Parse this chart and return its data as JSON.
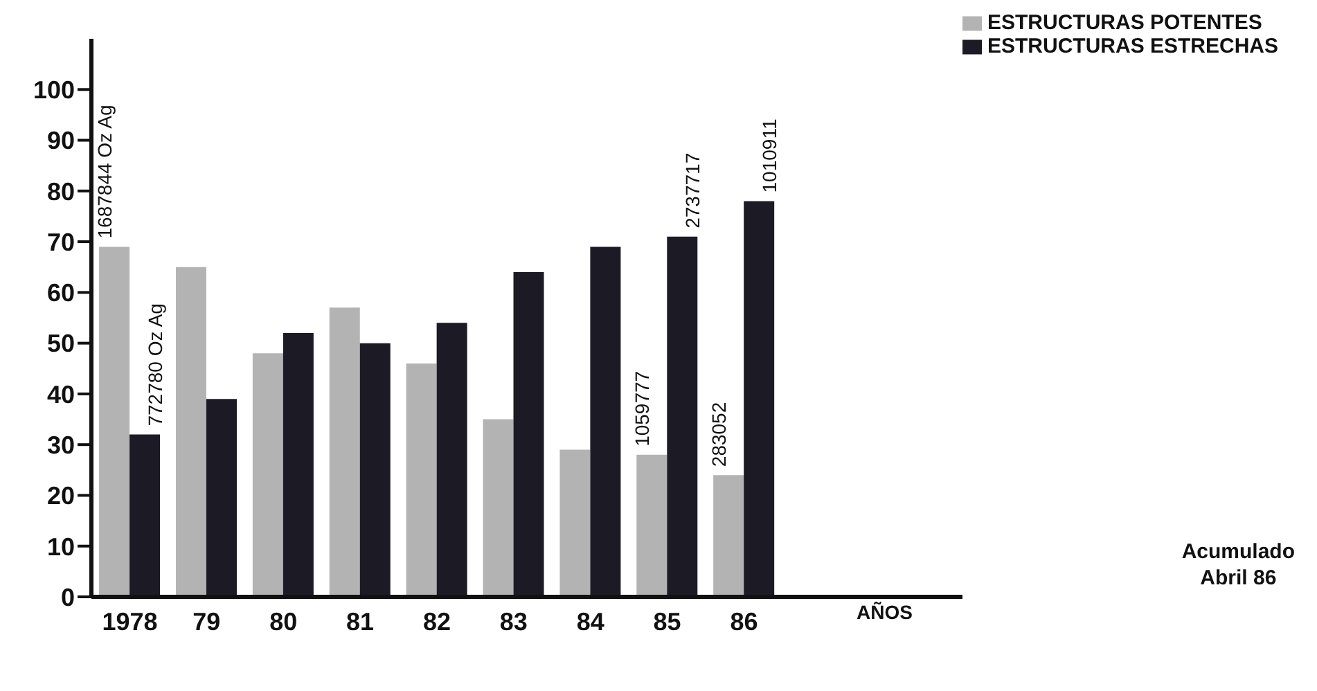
{
  "chart_data": {
    "type": "bar",
    "xlabel": "AÑOS",
    "categories": [
      "1978",
      "79",
      "80",
      "81",
      "82",
      "83",
      "84",
      "85",
      "86"
    ],
    "series": [
      {
        "name": "ESTRUCTURAS POTENTES",
        "color": "#b3b3b3",
        "values": [
          69,
          65,
          48,
          57,
          46,
          35,
          29,
          28,
          24
        ]
      },
      {
        "name": "ESTRUCTURAS ESTRECHAS",
        "color": "#1c1a24",
        "values": [
          32,
          39,
          52,
          50,
          54,
          64,
          69,
          71,
          78
        ]
      }
    ],
    "ylim": [
      0,
      110
    ],
    "yticks": [
      0,
      10,
      20,
      30,
      40,
      50,
      60,
      70,
      80,
      90,
      100
    ],
    "grid": false,
    "legend": "top right",
    "annotations": [
      {
        "text": "1687844 Oz Ag",
        "x": "1978",
        "y": 69
      },
      {
        "text": "772780 Oz Ag",
        "x": "1978",
        "y": 32
      },
      {
        "text": "1059777",
        "x": "85",
        "y": 28
      },
      {
        "text": "2737717",
        "x": "85",
        "y": 71
      },
      {
        "text": "283052",
        "x": "86",
        "y": 24
      },
      {
        "text": "1010911",
        "x": "86",
        "y": 78
      },
      "Acumulado Abril 86"
    ]
  }
}
